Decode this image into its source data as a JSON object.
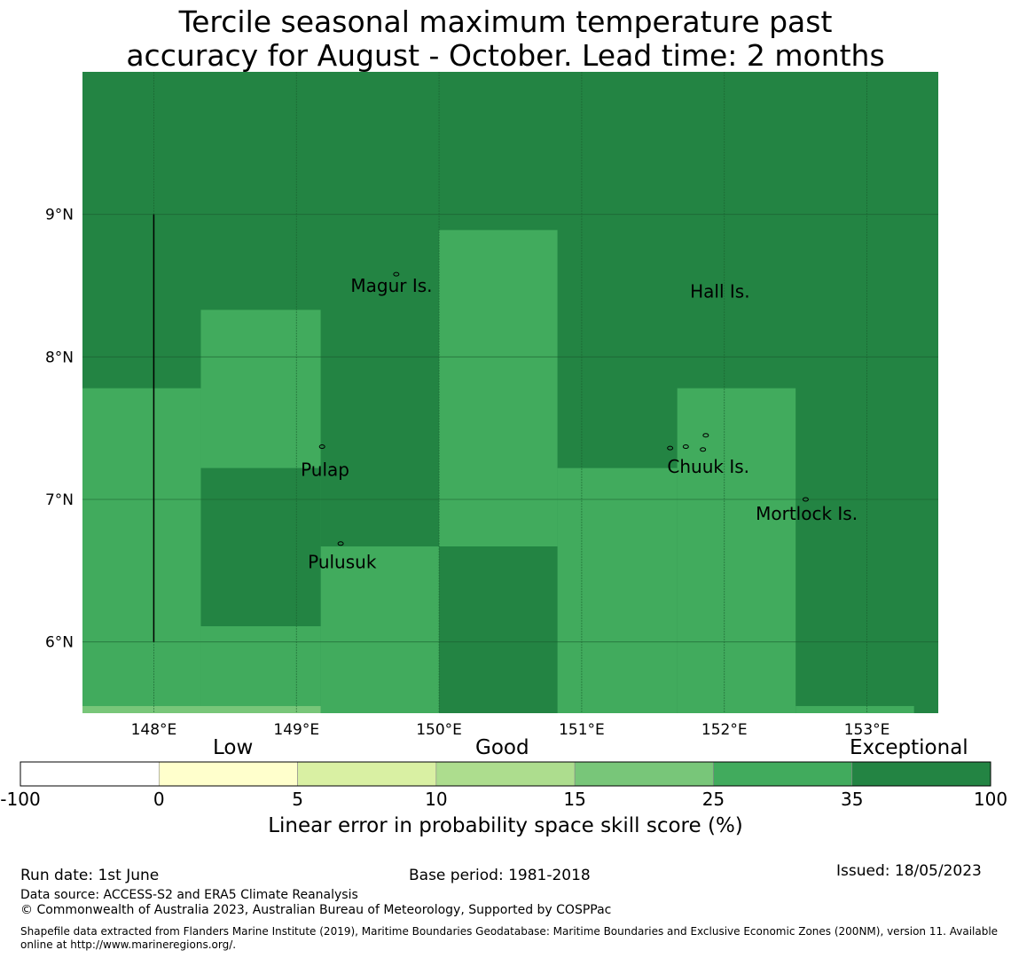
{
  "title": {
    "line1": "Tercile seasonal maximum temperature past",
    "line2": "accuracy for August - October. Lead time: 2 months"
  },
  "map": {
    "lon_range": [
      147.5,
      153.5
    ],
    "lat_range": [
      5.5,
      10.0
    ],
    "lon_ticks": [
      {
        "value": 148,
        "label": "148°E"
      },
      {
        "value": 149,
        "label": "149°E"
      },
      {
        "value": 150,
        "label": "150°E"
      },
      {
        "value": 151,
        "label": "151°E"
      },
      {
        "value": 152,
        "label": "152°E"
      },
      {
        "value": 153,
        "label": "153°E"
      }
    ],
    "lat_ticks": [
      {
        "value": 9,
        "label": "9°N"
      },
      {
        "value": 8,
        "label": "8°N"
      },
      {
        "value": 7,
        "label": "7°N"
      },
      {
        "value": 6,
        "label": "6°N"
      }
    ],
    "grid": true,
    "cells": [
      {
        "lon": [
          147.5,
          153.5
        ],
        "lat": [
          5.5,
          10.0
        ],
        "class": "exceptional"
      },
      {
        "lon": [
          147.5,
          148.33
        ],
        "lat": [
          5.5,
          7.78
        ],
        "class": "very_good"
      },
      {
        "lon": [
          148.33,
          149.17
        ],
        "lat": [
          5.5,
          8.33
        ],
        "class": "very_good"
      },
      {
        "lon": [
          149.17,
          150.0
        ],
        "lat": [
          5.5,
          6.67
        ],
        "class": "very_good"
      },
      {
        "lon": [
          150.0,
          150.83
        ],
        "lat": [
          6.67,
          8.89
        ],
        "class": "very_good"
      },
      {
        "lon": [
          150.83,
          151.67
        ],
        "lat": [
          5.5,
          7.22
        ],
        "class": "very_good"
      },
      {
        "lon": [
          151.67,
          152.5
        ],
        "lat": [
          5.5,
          7.78
        ],
        "class": "very_good"
      },
      {
        "lon": [
          152.5,
          153.33
        ],
        "lat": [
          5.5,
          5.55
        ],
        "class": "very_good"
      },
      {
        "lon": [
          148.33,
          149.17
        ],
        "lat": [
          6.11,
          7.22
        ],
        "class": "exceptional"
      },
      {
        "lon": [
          150.0,
          150.83
        ],
        "lat": [
          5.5,
          6.67
        ],
        "class": "exceptional"
      },
      {
        "lon": [
          147.5,
          149.17
        ],
        "lat": [
          5.5,
          5.55
        ],
        "class": "good_high"
      }
    ],
    "boundary_line": {
      "lon": 148.0,
      "lat": [
        6.0,
        9.0
      ]
    },
    "places": [
      {
        "name": "Magur Is.",
        "lon": 149.38,
        "lat": 8.5
      },
      {
        "name": "Hall Is.",
        "lon": 151.76,
        "lat": 8.46
      },
      {
        "name": "Pulap",
        "lon": 149.03,
        "lat": 7.21
      },
      {
        "name": "Chuuk Is.",
        "lon": 151.6,
        "lat": 7.23
      },
      {
        "name": "Mortlock Is.",
        "lon": 152.22,
        "lat": 6.9
      },
      {
        "name": "Pulusuk",
        "lon": 149.08,
        "lat": 6.56
      }
    ]
  },
  "colors": {
    "exceptional": "#238443",
    "very_good": "#41ab5d",
    "good_high": "#78c679",
    "good_mid": "#addd8e",
    "good_low": "#d9f0a3",
    "low": "#ffffcc",
    "none": "#ffffff",
    "grid": "#1a5c2e"
  },
  "colorbar": {
    "categories": [
      "Low",
      "Good",
      "Exceptional"
    ],
    "ticks": [
      "-100",
      "0",
      "5",
      "10",
      "15",
      "25",
      "35",
      "100"
    ],
    "segments": [
      "none",
      "low",
      "good_low",
      "good_mid",
      "good_high",
      "very_good",
      "exceptional"
    ],
    "label": "Linear error in probability space skill score (%)"
  },
  "footer": {
    "run_date": "Run date: 1st June",
    "base_period": "Base period: 1981-2018",
    "issued": "Issued: 18/05/2023",
    "data_source": "Data source: ACCESS-S2 and ERA5 Climate Reanalysis",
    "copyright": "© Commonwealth of Australia 2023, Australian Bureau of Meteorology, Supported by COSPPac",
    "shapefile": "Shapefile data extracted from Flanders Marine Institute (2019), Maritime Boundaries Geodatabase: Maritime Boundaries and Exclusive Economic Zones (200NM), version 11. Available online at http://www.marineregions.org/."
  }
}
